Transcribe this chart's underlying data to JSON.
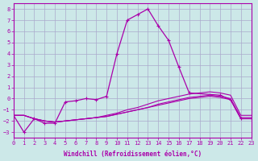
{
  "x": [
    0,
    1,
    2,
    3,
    4,
    5,
    6,
    7,
    8,
    9,
    10,
    11,
    12,
    13,
    14,
    15,
    16,
    17,
    18,
    19,
    20,
    21,
    22,
    23
  ],
  "line1": [
    -1.5,
    -3.0,
    -1.8,
    -2.2,
    -2.2,
    -0.3,
    -0.2,
    0.0,
    -0.1,
    0.2,
    4.0,
    7.0,
    7.5,
    8.0,
    6.5,
    5.2,
    2.8,
    0.5,
    null,
    null,
    0.3,
    -0.1,
    -1.8,
    -1.8
  ],
  "line2": [
    -1.5,
    -1.5,
    -1.8,
    -2.0,
    -2.1,
    -2.0,
    -1.9,
    -1.8,
    -1.7,
    -1.6,
    -1.4,
    -1.2,
    -1.0,
    -0.8,
    -0.6,
    -0.4,
    -0.2,
    0.0,
    0.1,
    0.2,
    0.1,
    -0.1,
    -1.8,
    -1.8
  ],
  "line3": [
    -1.5,
    -1.5,
    -1.8,
    -2.0,
    -2.1,
    -2.0,
    -1.9,
    -1.8,
    -1.7,
    -1.6,
    -1.4,
    -1.2,
    -1.0,
    -0.8,
    -0.5,
    -0.3,
    -0.1,
    0.1,
    0.2,
    0.3,
    0.2,
    0.0,
    -1.7,
    -1.7
  ],
  "line4": [
    -1.5,
    -1.5,
    -1.8,
    -2.0,
    -2.1,
    -2.0,
    -1.9,
    -1.8,
    -1.7,
    -1.5,
    -1.3,
    -1.0,
    -0.8,
    -0.5,
    -0.2,
    0.0,
    0.2,
    0.4,
    0.5,
    0.6,
    0.5,
    0.3,
    -1.5,
    -1.5
  ],
  "bg_color": "#cce8e8",
  "grid_color": "#aaaacc",
  "line_color": "#aa00aa",
  "xlabel": "Windchill (Refroidissement éolien,°C)",
  "ylabel": "",
  "title": "",
  "xlim": [
    0,
    23
  ],
  "ylim": [
    -3.5,
    8.5
  ],
  "yticks": [
    -3,
    -2,
    -1,
    0,
    1,
    2,
    3,
    4,
    5,
    6,
    7,
    8
  ],
  "xticks": [
    0,
    1,
    2,
    3,
    4,
    5,
    6,
    7,
    8,
    9,
    10,
    11,
    12,
    13,
    14,
    15,
    16,
    17,
    18,
    19,
    20,
    21,
    22,
    23
  ]
}
